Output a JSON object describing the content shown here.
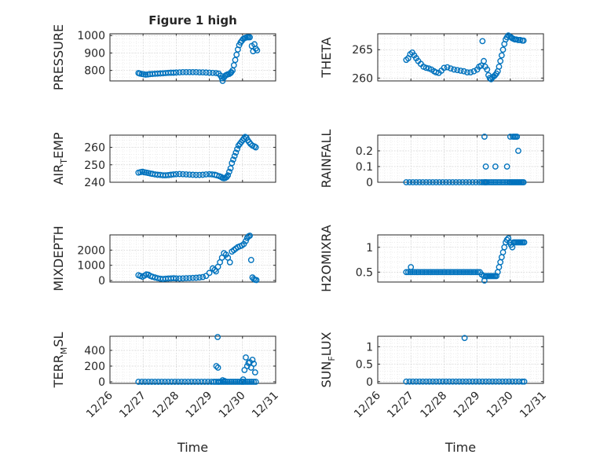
{
  "chart_data": [
    {
      "type": "scatter",
      "ylabel": "PRESSURE",
      "title": "Figure 1 high",
      "xlabel": "",
      "ylim": [
        740,
        1010
      ],
      "yticks": [
        800,
        900,
        1000
      ],
      "x": [
        0.86,
        0.9,
        0.96,
        1.02,
        1.08,
        1.14,
        1.2,
        1.28,
        1.36,
        1.44,
        1.52,
        1.6,
        1.68,
        1.76,
        1.84,
        1.92,
        2.0,
        2.1,
        2.2,
        2.3,
        2.4,
        2.5,
        2.6,
        2.7,
        2.8,
        2.9,
        3.0,
        3.1,
        3.2,
        3.28,
        3.34,
        3.38,
        3.4,
        3.44,
        3.48,
        3.52,
        3.56,
        3.6,
        3.64,
        3.66,
        3.7,
        3.74,
        3.78,
        3.82,
        3.86,
        3.9,
        3.94,
        3.98,
        4.02,
        4.06,
        4.1,
        4.14,
        4.18,
        4.22,
        4.28,
        4.32,
        4.36,
        4.4,
        4.44
      ],
      "y": [
        785,
        782,
        780,
        778,
        776,
        777,
        779,
        780,
        781,
        782,
        783,
        784,
        785,
        786,
        787,
        787,
        788,
        789,
        790,
        790,
        790,
        790,
        790,
        789,
        789,
        788,
        787,
        786,
        785,
        782,
        770,
        755,
        740,
        760,
        770,
        775,
        778,
        780,
        785,
        790,
        800,
        830,
        860,
        890,
        920,
        945,
        960,
        970,
        980,
        985,
        988,
        990,
        990,
        990,
        940,
        910,
        950,
        925,
        915
      ]
    },
    {
      "type": "scatter",
      "ylabel": "THETA",
      "title": "",
      "xlabel": "",
      "ylim": [
        259.5,
        267.8
      ],
      "yticks": [
        260,
        265
      ],
      "x": [
        0.86,
        0.92,
        0.98,
        1.04,
        1.1,
        1.16,
        1.22,
        1.3,
        1.38,
        1.46,
        1.54,
        1.62,
        1.7,
        1.76,
        1.84,
        1.92,
        2.0,
        2.1,
        2.2,
        2.3,
        2.4,
        2.5,
        2.6,
        2.7,
        2.8,
        2.9,
        3.0,
        3.06,
        3.12,
        3.16,
        3.2,
        3.24,
        3.3,
        3.34,
        3.38,
        3.42,
        3.46,
        3.5,
        3.54,
        3.58,
        3.62,
        3.66,
        3.7,
        3.74,
        3.78,
        3.82,
        3.86,
        3.9,
        3.94,
        3.98,
        4.02,
        4.06,
        4.1,
        4.14,
        4.18,
        4.24,
        4.3,
        4.36,
        4.4
      ],
      "y": [
        263.2,
        263.5,
        264.2,
        264.5,
        264,
        263.5,
        263,
        262.5,
        262,
        261.8,
        261.7,
        261.5,
        261.2,
        261,
        260.9,
        261.3,
        261.8,
        261.9,
        261.7,
        261.5,
        261.4,
        261.3,
        261.2,
        261,
        261,
        261.2,
        261.5,
        262,
        262.2,
        266.5,
        263,
        262,
        261.5,
        260.5,
        260,
        259.8,
        260.1,
        260.3,
        260.5,
        260.8,
        261.2,
        262,
        263,
        264,
        265,
        266,
        266.8,
        267.2,
        267.5,
        267.3,
        267.2,
        267,
        266.9,
        266.8,
        266.8,
        266.7,
        266.7,
        266.6,
        266.6
      ]
    },
    {
      "type": "scatter",
      "ylabel": "AIR_TEMP",
      "title": "",
      "xlabel": "",
      "ylim": [
        240,
        267
      ],
      "yticks": [
        240,
        250,
        260
      ],
      "x": [
        0.86,
        0.92,
        0.98,
        1.04,
        1.1,
        1.16,
        1.22,
        1.28,
        1.36,
        1.44,
        1.52,
        1.6,
        1.68,
        1.76,
        1.84,
        1.92,
        2.0,
        2.1,
        2.2,
        2.3,
        2.4,
        2.5,
        2.6,
        2.7,
        2.8,
        2.9,
        3.0,
        3.08,
        3.16,
        3.22,
        3.3,
        3.36,
        3.4,
        3.44,
        3.48,
        3.52,
        3.56,
        3.6,
        3.64,
        3.68,
        3.72,
        3.76,
        3.8,
        3.84,
        3.88,
        3.92,
        3.96,
        4.0,
        4.04,
        4.08,
        4.12,
        4.16,
        4.2,
        4.24,
        4.3,
        4.36,
        4.4
      ],
      "y": [
        245.5,
        245.8,
        246,
        245.7,
        245.5,
        245.3,
        245,
        244.8,
        244.5,
        244.3,
        244.2,
        244,
        244,
        244.1,
        244.3,
        244.5,
        244.6,
        244.7,
        244.6,
        244.5,
        244.4,
        244.3,
        244.2,
        244.2,
        244.3,
        244.5,
        244.6,
        244.5,
        244.3,
        244,
        243.5,
        243,
        242.5,
        242.3,
        242.5,
        243,
        244,
        246,
        248,
        251,
        253,
        255,
        257,
        259,
        261,
        262,
        263,
        264,
        265,
        266,
        265.5,
        264,
        263,
        262,
        261,
        260.5,
        260
      ]
    },
    {
      "type": "scatter",
      "ylabel": "RAINFALL",
      "title": "",
      "xlabel": "",
      "ylim": [
        0,
        0.3
      ],
      "yticks": [
        0,
        0.1,
        0.2
      ],
      "x": [
        0.86,
        0.96,
        1.06,
        1.16,
        1.26,
        1.36,
        1.46,
        1.56,
        1.66,
        1.76,
        1.86,
        1.96,
        2.06,
        2.16,
        2.26,
        2.36,
        2.46,
        2.56,
        2.66,
        2.76,
        2.86,
        2.96,
        3.06,
        3.14,
        3.2,
        3.24,
        3.26,
        3.3,
        3.36,
        3.42,
        3.48,
        3.54,
        3.6,
        3.66,
        3.72,
        3.78,
        3.84,
        3.9,
        3.96,
        4.0,
        4.04,
        4.08,
        4.12,
        4.16,
        4.2,
        4.24,
        4.28,
        4.32,
        4.36,
        4.4,
        3.22,
        3.26,
        3.55,
        3.9,
        4.0,
        4.08,
        4.12,
        4.16,
        4.2,
        4.24
      ],
      "y": [
        0,
        0,
        0,
        0,
        0,
        0,
        0,
        0,
        0,
        0,
        0,
        0,
        0,
        0,
        0,
        0,
        0,
        0,
        0,
        0,
        0,
        0,
        0,
        0,
        0,
        0,
        0,
        0,
        0,
        0,
        0,
        0,
        0,
        0,
        0,
        0,
        0,
        0,
        0,
        0,
        0,
        0,
        0,
        0,
        0,
        0,
        0,
        0,
        0,
        0,
        0.29,
        0.1,
        0.1,
        0.1,
        0.29,
        0.29,
        0.29,
        0.29,
        0.29,
        0.2
      ]
    },
    {
      "type": "scatter",
      "ylabel": "MIXDEPTH",
      "title": "",
      "xlabel": "",
      "ylim": [
        -100,
        3000
      ],
      "yticks": [
        0,
        1000,
        2000
      ],
      "x": [
        0.86,
        0.92,
        0.98,
        1.04,
        1.1,
        1.16,
        1.22,
        1.28,
        1.36,
        1.44,
        1.52,
        1.6,
        1.68,
        1.76,
        1.84,
        1.92,
        2.0,
        2.1,
        2.2,
        2.3,
        2.4,
        2.5,
        2.6,
        2.7,
        2.8,
        2.9,
        3.0,
        3.1,
        3.16,
        3.2,
        3.26,
        3.32,
        3.38,
        3.44,
        3.5,
        3.56,
        3.62,
        3.68,
        3.74,
        3.8,
        3.86,
        3.92,
        3.98,
        4.04,
        4.1,
        4.14,
        4.18,
        4.22,
        4.26,
        4.3,
        4.34,
        4.38,
        4.42
      ],
      "y": [
        350,
        300,
        250,
        320,
        400,
        380,
        300,
        250,
        200,
        150,
        120,
        100,
        120,
        130,
        140,
        150,
        140,
        130,
        140,
        150,
        160,
        170,
        180,
        200,
        230,
        300,
        500,
        800,
        700,
        600,
        900,
        1200,
        1500,
        1800,
        1700,
        1500,
        1200,
        1900,
        2000,
        2100,
        2200,
        2250,
        2300,
        2400,
        2600,
        2800,
        2900,
        2950,
        1350,
        200,
        100,
        50,
        30
      ]
    },
    {
      "type": "scatter",
      "ylabel": "H2OMIXRA",
      "title": "",
      "xlabel": "",
      "ylim": [
        0.3,
        1.25
      ],
      "yticks": [
        0.5,
        1
      ],
      "x": [
        0.86,
        0.92,
        0.98,
        1.04,
        1.1,
        1.16,
        1.22,
        1.28,
        1.34,
        1.4,
        1.46,
        1.52,
        1.58,
        1.64,
        1.7,
        1.76,
        1.82,
        1.88,
        1.94,
        2.0,
        2.06,
        2.12,
        2.18,
        2.24,
        2.3,
        2.36,
        2.42,
        2.48,
        2.54,
        2.6,
        2.66,
        2.72,
        2.78,
        2.84,
        2.9,
        2.96,
        3.02,
        3.08,
        3.14,
        3.2,
        3.26,
        3.3,
        3.34,
        3.38,
        3.42,
        3.46,
        3.5,
        3.54,
        3.58,
        3.62,
        3.66,
        3.7,
        3.74,
        3.78,
        3.82,
        3.86,
        3.9,
        3.94,
        3.98,
        4.02,
        4.06,
        4.1,
        4.14,
        4.18,
        4.22,
        4.26,
        4.3,
        4.34,
        4.38,
        4.42,
        1.0,
        3.22
      ],
      "y": [
        0.5,
        0.5,
        0.5,
        0.5,
        0.5,
        0.5,
        0.5,
        0.5,
        0.5,
        0.5,
        0.5,
        0.5,
        0.5,
        0.5,
        0.5,
        0.5,
        0.5,
        0.5,
        0.5,
        0.5,
        0.5,
        0.5,
        0.5,
        0.5,
        0.5,
        0.5,
        0.5,
        0.5,
        0.5,
        0.5,
        0.5,
        0.5,
        0.5,
        0.5,
        0.5,
        0.5,
        0.5,
        0.5,
        0.45,
        0.42,
        0.42,
        0.42,
        0.42,
        0.42,
        0.42,
        0.42,
        0.42,
        0.42,
        0.42,
        0.5,
        0.6,
        0.7,
        0.8,
        0.9,
        1.0,
        1.1,
        1.15,
        1.18,
        1.1,
        1.05,
        1.0,
        1.1,
        1.1,
        1.1,
        1.1,
        1.1,
        1.1,
        1.1,
        1.1,
        1.1,
        0.6,
        0.33
      ]
    },
    {
      "type": "scatter",
      "ylabel": "TERR_MSL",
      "title": "",
      "xlabel": "Time",
      "ylim": [
        -20,
        580
      ],
      "yticks": [
        0,
        200,
        400
      ],
      "xticklabels": [
        "12/26",
        "12/27",
        "12/28",
        "12/29",
        "12/30",
        "12/31"
      ],
      "x": [
        0.86,
        0.96,
        1.06,
        1.16,
        1.26,
        1.36,
        1.46,
        1.56,
        1.66,
        1.76,
        1.86,
        1.96,
        2.06,
        2.16,
        2.26,
        2.36,
        2.46,
        2.56,
        2.66,
        2.76,
        2.86,
        2.96,
        3.06,
        3.14,
        3.2,
        3.26,
        3.3,
        3.36,
        3.42,
        3.48,
        3.54,
        3.6,
        3.66,
        3.72,
        3.78,
        3.84,
        3.9,
        3.96,
        4.0,
        4.04,
        4.1,
        4.16,
        4.22,
        4.28,
        4.34,
        4.4,
        3.21,
        3.25,
        3.26,
        3.4,
        3.46,
        4.02,
        4.06,
        4.1,
        4.14,
        4.18,
        4.22,
        4.26,
        4.3,
        4.34,
        4.38
      ],
      "y": [
        0,
        0,
        0,
        0,
        0,
        0,
        0,
        0,
        0,
        0,
        0,
        0,
        0,
        0,
        0,
        0,
        0,
        0,
        0,
        0,
        0,
        0,
        0,
        0,
        0,
        0,
        0,
        0,
        0,
        0,
        0,
        0,
        0,
        0,
        0,
        0,
        0,
        0,
        0,
        0,
        0,
        0,
        0,
        0,
        0,
        0,
        200,
        570,
        180,
        20,
        10,
        30,
        150,
        310,
        200,
        240,
        250,
        180,
        280,
        230,
        120
      ]
    },
    {
      "type": "scatter",
      "ylabel": "SUN_FLUX",
      "title": "",
      "xlabel": "Time",
      "ylim": [
        -0.05,
        1.3
      ],
      "yticks": [
        0,
        0.5,
        1
      ],
      "xticklabels": [
        "12/26",
        "12/27",
        "12/28",
        "12/29",
        "12/30",
        "12/31"
      ],
      "x": [
        0.86,
        0.96,
        1.06,
        1.16,
        1.26,
        1.36,
        1.46,
        1.56,
        1.66,
        1.76,
        1.86,
        1.96,
        2.06,
        2.16,
        2.26,
        2.36,
        2.46,
        2.56,
        2.66,
        2.76,
        2.86,
        2.96,
        3.06,
        3.16,
        3.26,
        3.36,
        3.46,
        3.56,
        3.66,
        3.76,
        3.86,
        3.96,
        4.06,
        4.16,
        4.26,
        4.36,
        4.42,
        2.62
      ],
      "y": [
        0,
        0,
        0,
        0,
        0,
        0,
        0,
        0,
        0,
        0,
        0,
        0,
        0,
        0,
        0,
        0,
        0,
        0,
        0,
        0,
        0,
        0,
        0,
        0,
        0,
        0,
        0,
        0,
        0,
        0,
        0,
        0,
        0,
        0,
        0,
        0,
        0,
        1.25
      ]
    }
  ]
}
